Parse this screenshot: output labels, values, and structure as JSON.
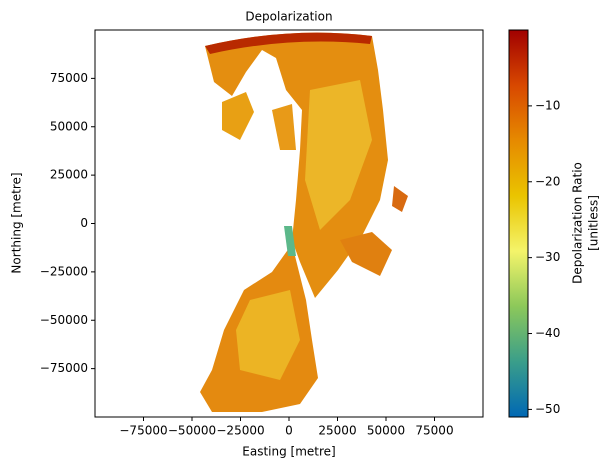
{
  "chart_data": {
    "type": "image",
    "title": "Depolarization",
    "xlabel": "Easting [metre]",
    "ylabel": "Northing [metre]",
    "xlim": [
      -100000,
      100000
    ],
    "ylim": [
      -100000,
      100000
    ],
    "xticks": [
      {
        "value": -75000,
        "label": "−75000"
      },
      {
        "value": -50000,
        "label": "−50000"
      },
      {
        "value": -25000,
        "label": "−25000"
      },
      0,
      25000,
      50000,
      75000
    ],
    "yticks": [
      {
        "value": -75000,
        "label": "−75000"
      },
      {
        "value": -50000,
        "label": "−50000"
      },
      {
        "value": -25000,
        "label": "−25000"
      },
      0,
      25000,
      50000,
      75000
    ],
    "colorbar_label": [
      "Depolarization Ratio",
      "[unitless]"
    ],
    "clim": [
      -51,
      0
    ],
    "cticks": [
      {
        "value": -10,
        "label": "−10"
      },
      {
        "value": -20,
        "label": "−20"
      },
      {
        "value": -30,
        "label": "−30"
      },
      {
        "value": -40,
        "label": "−40"
      },
      {
        "value": -50,
        "label": "−50"
      }
    ],
    "colormap": [
      "#0068b4",
      "#3a9e8a",
      "#8cc85a",
      "#f4f46a",
      "#eac400",
      "#e68a00",
      "#d84800",
      "#a00000"
    ]
  }
}
